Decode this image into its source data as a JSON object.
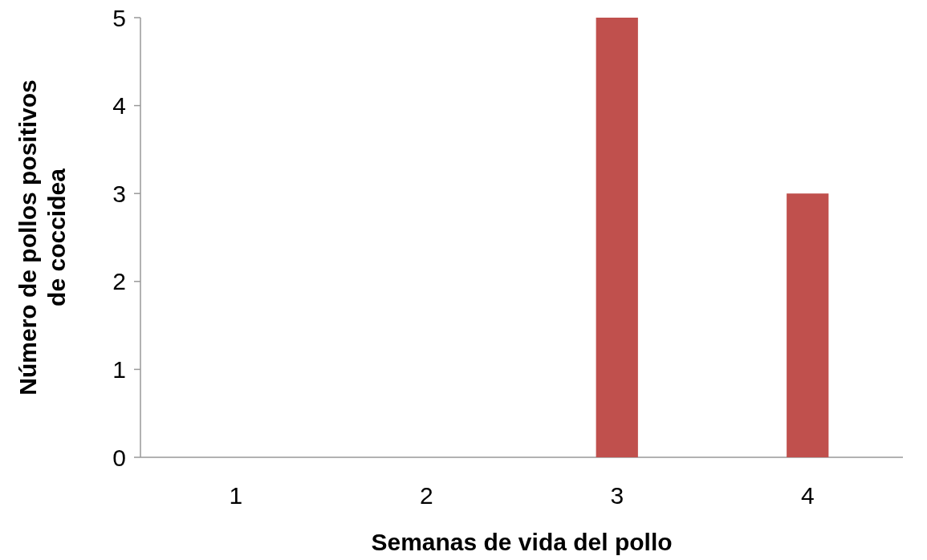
{
  "chart_data": {
    "type": "bar",
    "xlabel": "Semanas de vida del pollo",
    "ylabel": "Número de pollos positivos de coccidea",
    "categories": [
      "1",
      "2",
      "3",
      "4"
    ],
    "values": [
      0,
      0,
      5,
      3
    ],
    "color": "#c0504d",
    "ylim": [
      0,
      5
    ],
    "yticks": [
      0,
      1,
      2,
      3,
      4,
      5
    ],
    "grid": false
  }
}
